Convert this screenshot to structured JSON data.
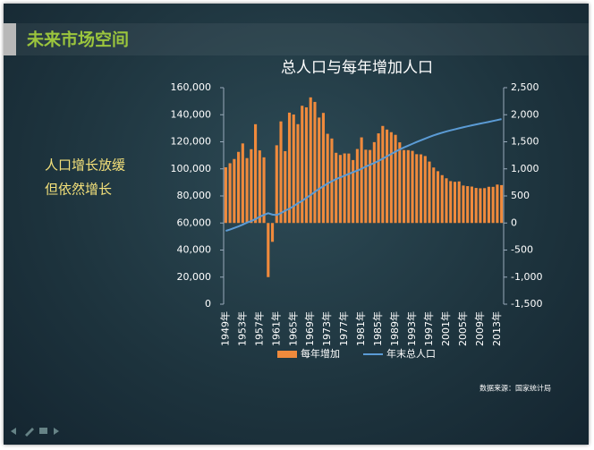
{
  "slide": {
    "title": "未来市场空间",
    "notes": [
      "人口增长放缓",
      "但依然增长"
    ],
    "source": "数据来源：国家统计局"
  },
  "chart_data": {
    "type": "bar",
    "title": "总人口与每年增加人口",
    "categories": [
      "1949年",
      null,
      null,
      null,
      "1953年",
      null,
      null,
      null,
      "1957年",
      null,
      null,
      null,
      "1961年",
      null,
      null,
      null,
      "1965年",
      null,
      null,
      null,
      "1969年",
      null,
      null,
      null,
      "1973年",
      null,
      null,
      null,
      "1977年",
      null,
      null,
      null,
      "1981年",
      null,
      null,
      null,
      "1985年",
      null,
      null,
      null,
      "1989年",
      null,
      null,
      null,
      "1993年",
      null,
      null,
      null,
      "1997年",
      null,
      null,
      null,
      "2001年",
      null,
      null,
      null,
      "2005年",
      null,
      null,
      null,
      "2009年",
      null,
      null,
      null,
      "2013年",
      null
    ],
    "series": [
      {
        "name": "每年增加",
        "type": "bar",
        "axis": "y2",
        "color": "#f08a3c",
        "values": [
          1029,
          1104,
          1182,
          1314,
          1470,
          1199,
          1363,
          1825,
          1341,
          1213,
          -1000,
          -348,
          1436,
          1877,
          1327,
          2039,
          2004,
          1826,
          2166,
          2137,
          2321,
          2237,
          1948,
          2034,
          1648,
          1561,
          1297,
          1257,
          1285,
          1283,
          1163,
          1367,
          1582,
          1354,
          1349,
          1494,
          1656,
          1793,
          1726,
          1678,
          1629,
          1490,
          1348,
          1346,
          1333,
          1271,
          1268,
          1237,
          1135,
          1025,
          957,
          884,
          826,
          774,
          761,
          768,
          692,
          681,
          673,
          648,
          641,
          644,
          669,
          668,
          710,
          700
        ]
      },
      {
        "name": "年末总人口",
        "type": "line",
        "color": "#5b9bd5",
        "values": [
          54167,
          55196,
          56300,
          57482,
          58796,
          60266,
          61465,
          62828,
          64653,
          65994,
          67207,
          66207,
          65859,
          67295,
          69172,
          70499,
          72538,
          74542,
          76368,
          78534,
          80671,
          82992,
          85229,
          87177,
          89211,
          90859,
          92420,
          93717,
          94974,
          96259,
          97542,
          98705,
          100072,
          101654,
          103008,
          104357,
          105851,
          107507,
          109300,
          111026,
          112704,
          114333,
          115823,
          117171,
          118517,
          119850,
          121121,
          122389,
          123626,
          124761,
          125786,
          126743,
          127627,
          128453,
          129227,
          129988,
          130756,
          131448,
          132129,
          132802,
          133450,
          134091,
          134735,
          135404,
          136072,
          136782
        ]
      }
    ],
    "ylim": [
      0,
      160000
    ],
    "yticks": [
      0,
      {
        "value": 20000,
        "label": "20,000"
      },
      {
        "value": 40000,
        "label": "40,000"
      },
      {
        "value": 60000,
        "label": "60,000"
      },
      {
        "value": 80000,
        "label": "80,000"
      },
      {
        "value": 100000,
        "label": "100,000"
      },
      {
        "value": 120000,
        "label": "120,000"
      },
      {
        "value": 140000,
        "label": "140,000"
      },
      {
        "value": 160000,
        "label": "160,000"
      }
    ],
    "y2lim": [
      -1500,
      2500
    ],
    "y2ticks": [
      {
        "value": -1500,
        "label": "-1,500"
      },
      {
        "value": -1000,
        "label": "-1,000"
      },
      -500,
      0,
      500,
      {
        "value": 1000,
        "label": "1,000"
      },
      {
        "value": 1500,
        "label": "1,500"
      },
      {
        "value": 2000,
        "label": "2,000"
      },
      {
        "value": 2500,
        "label": "2,500"
      }
    ],
    "legend": "bottom",
    "grid": false
  }
}
